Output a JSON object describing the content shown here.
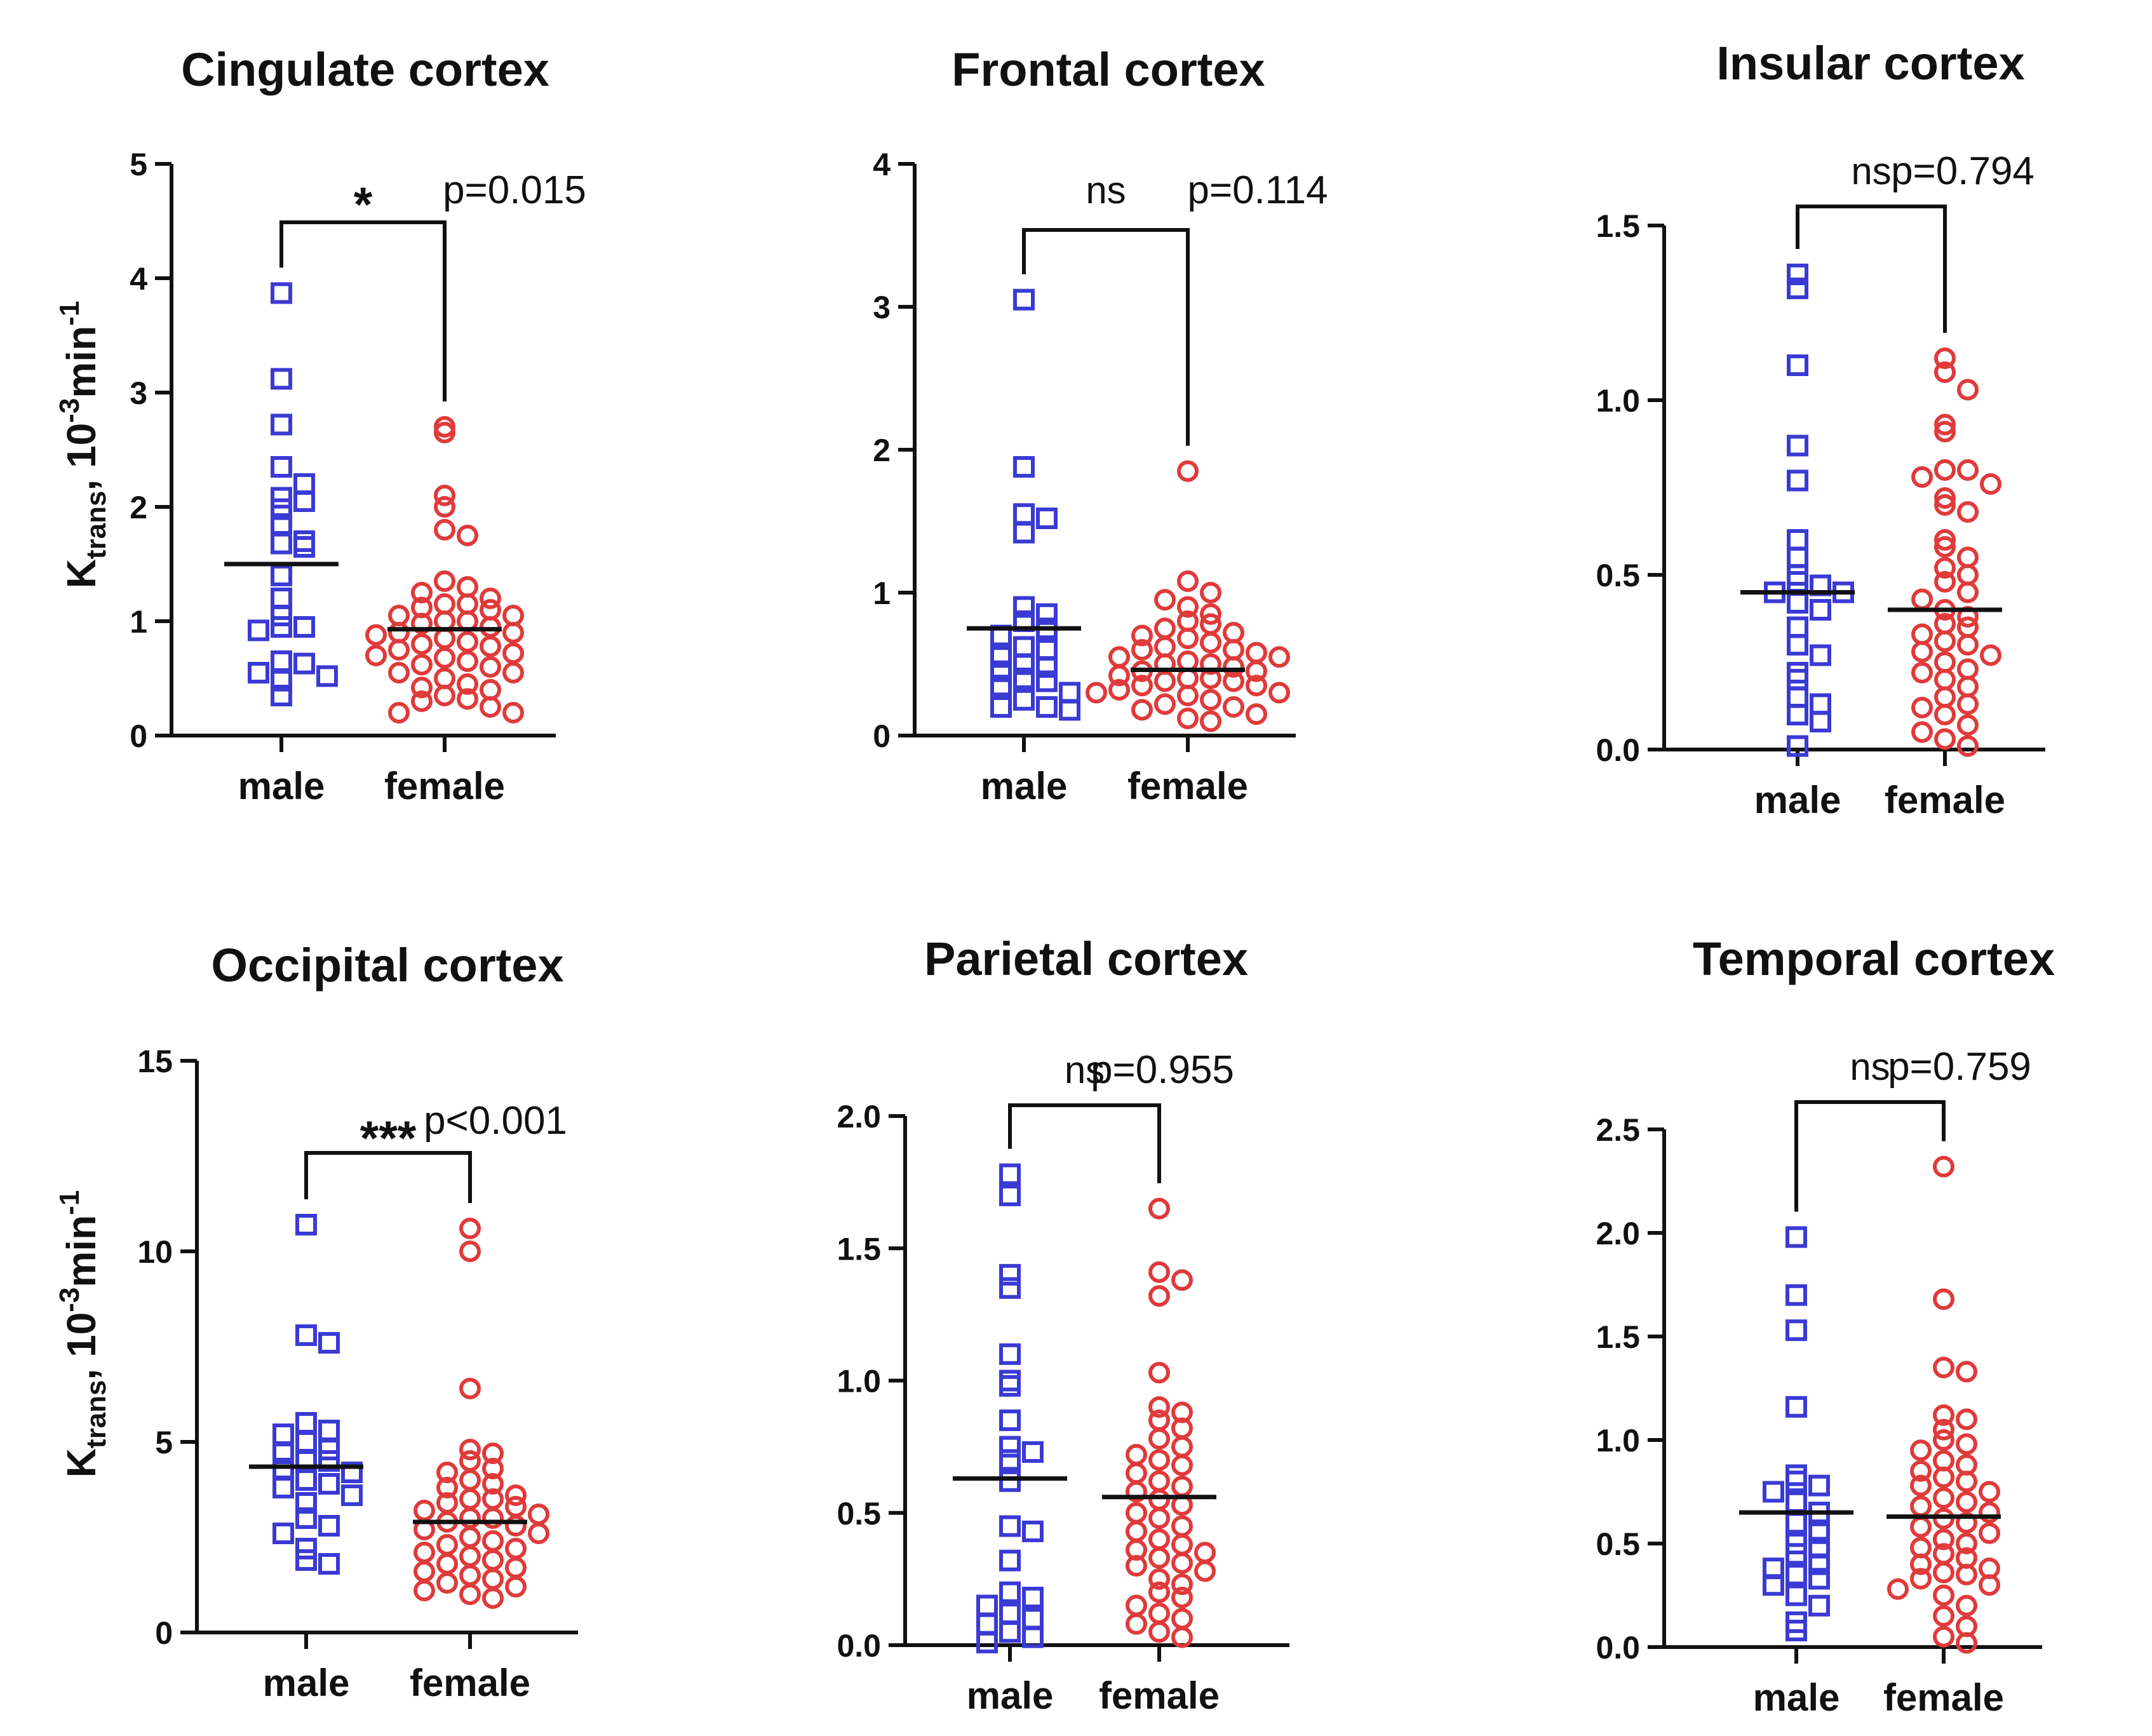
{
  "figure": {
    "ylabel": {
      "main": "K",
      "sub": "trans",
      "unit_pre": ", 10",
      "sup1": "-3",
      "unit_mid": "min",
      "sup2": "-1"
    },
    "colors": {
      "male": "#3a3ad4",
      "female": "#e03a3a",
      "axis": "#111111"
    }
  },
  "chart_data": [
    {
      "type": "scatter",
      "title": "Cingulate cortex",
      "categories": [
        "male",
        "female"
      ],
      "ylim": [
        0,
        5
      ],
      "yticks": [
        0,
        1,
        2,
        3,
        4,
        5
      ],
      "ytick_labels": [
        "0",
        "1",
        "2",
        "3",
        "4",
        "5"
      ],
      "significance": "*",
      "p_value": "p=0.015",
      "series": [
        {
          "name": "male",
          "marker": "square",
          "mean": 1.5,
          "values": [
            3.87,
            3.12,
            2.72,
            2.35,
            2.2,
            2.08,
            2.05,
            1.98,
            1.85,
            1.7,
            1.68,
            1.65,
            1.4,
            1.2,
            1.05,
            0.95,
            0.95,
            0.92,
            0.65,
            0.63,
            0.55,
            0.52,
            0.48,
            0.35
          ]
        },
        {
          "name": "female",
          "marker": "circle",
          "mean": 0.93,
          "values": [
            2.7,
            2.65,
            2.1,
            2.0,
            1.8,
            1.75,
            1.35,
            1.3,
            1.25,
            1.2,
            1.15,
            1.15,
            1.12,
            1.1,
            1.05,
            1.05,
            1.0,
            1.0,
            0.98,
            0.95,
            0.9,
            0.9,
            0.88,
            0.85,
            0.82,
            0.8,
            0.78,
            0.75,
            0.72,
            0.7,
            0.68,
            0.65,
            0.62,
            0.6,
            0.55,
            0.55,
            0.5,
            0.45,
            0.42,
            0.4,
            0.35,
            0.32,
            0.3,
            0.25,
            0.2,
            0.2
          ]
        }
      ]
    },
    {
      "type": "scatter",
      "title": "Frontal cortex",
      "categories": [
        "male",
        "female"
      ],
      "ylim": [
        0,
        4
      ],
      "yticks": [
        0,
        1,
        2,
        3,
        4
      ],
      "ytick_labels": [
        "0",
        "1",
        "2",
        "3",
        "4"
      ],
      "significance": "ns",
      "p_value": "p=0.114",
      "series": [
        {
          "name": "male",
          "marker": "square",
          "mean": 0.75,
          "values": [
            3.05,
            1.88,
            1.55,
            1.52,
            1.42,
            0.9,
            0.85,
            0.8,
            0.75,
            0.7,
            0.62,
            0.6,
            0.55,
            0.5,
            0.48,
            0.45,
            0.4,
            0.38,
            0.35,
            0.3,
            0.25,
            0.2,
            0.2,
            0.18
          ]
        },
        {
          "name": "female",
          "marker": "circle",
          "mean": 0.46,
          "values": [
            1.85,
            1.08,
            1.0,
            0.95,
            0.9,
            0.85,
            0.8,
            0.78,
            0.75,
            0.72,
            0.7,
            0.68,
            0.65,
            0.62,
            0.6,
            0.6,
            0.58,
            0.55,
            0.55,
            0.52,
            0.5,
            0.5,
            0.48,
            0.45,
            0.45,
            0.42,
            0.4,
            0.4,
            0.38,
            0.38,
            0.35,
            0.35,
            0.32,
            0.3,
            0.3,
            0.28,
            0.25,
            0.22,
            0.2,
            0.18,
            0.15,
            0.12,
            0.1
          ]
        }
      ]
    },
    {
      "type": "scatter",
      "title": "Insular cortex",
      "categories": [
        "male",
        "female"
      ],
      "ylim": [
        0,
        1.5
      ],
      "yticks": [
        0,
        0.5,
        1.0,
        1.5
      ],
      "ytick_labels": [
        "0.0",
        "0.5",
        "1.0",
        "1.5"
      ],
      "significance": "ns",
      "p_value": "p=0.794",
      "series": [
        {
          "name": "male",
          "marker": "square",
          "mean": 0.45,
          "values": [
            1.36,
            1.32,
            1.1,
            0.87,
            0.77,
            0.6,
            0.55,
            0.5,
            0.48,
            0.47,
            0.45,
            0.45,
            0.42,
            0.4,
            0.35,
            0.3,
            0.27,
            0.22,
            0.2,
            0.15,
            0.13,
            0.1,
            0.08,
            0.01
          ]
        },
        {
          "name": "female",
          "marker": "circle",
          "mean": 0.4,
          "values": [
            1.12,
            1.08,
            1.03,
            0.93,
            0.91,
            0.8,
            0.8,
            0.78,
            0.76,
            0.72,
            0.7,
            0.68,
            0.6,
            0.58,
            0.55,
            0.52,
            0.5,
            0.48,
            0.45,
            0.43,
            0.4,
            0.38,
            0.36,
            0.35,
            0.33,
            0.31,
            0.3,
            0.28,
            0.27,
            0.25,
            0.23,
            0.22,
            0.2,
            0.18,
            0.15,
            0.13,
            0.12,
            0.1,
            0.07,
            0.05,
            0.03,
            0.01
          ]
        }
      ]
    },
    {
      "type": "scatter",
      "title": "Occipital cortex",
      "categories": [
        "male",
        "female"
      ],
      "ylim": [
        0,
        15
      ],
      "yticks": [
        0,
        5,
        10,
        15
      ],
      "ytick_labels": [
        "0",
        "5",
        "10",
        "15"
      ],
      "significance": "***",
      "p_value": "p<0.001",
      "series": [
        {
          "name": "male",
          "marker": "square",
          "mean": 4.35,
          "values": [
            10.7,
            7.8,
            7.6,
            5.5,
            5.3,
            5.2,
            5.0,
            4.8,
            4.7,
            4.5,
            4.5,
            4.3,
            4.2,
            4.0,
            3.9,
            3.8,
            3.6,
            3.4,
            3.0,
            2.8,
            2.6,
            2.2,
            1.9,
            1.8
          ]
        },
        {
          "name": "female",
          "marker": "circle",
          "mean": 2.9,
          "values": [
            10.6,
            10.0,
            6.4,
            4.8,
            4.7,
            4.5,
            4.3,
            4.2,
            4.0,
            3.9,
            3.8,
            3.6,
            3.5,
            3.5,
            3.4,
            3.3,
            3.2,
            3.1,
            3.0,
            3.0,
            2.9,
            2.8,
            2.7,
            2.6,
            2.5,
            2.4,
            2.3,
            2.2,
            2.1,
            2.0,
            1.9,
            1.8,
            1.7,
            1.6,
            1.5,
            1.4,
            1.3,
            1.2,
            1.1,
            1.0,
            0.9
          ]
        }
      ]
    },
    {
      "type": "scatter",
      "title": "Parietal cortex",
      "categories": [
        "male",
        "female"
      ],
      "ylim": [
        0,
        2.0
      ],
      "yticks": [
        0,
        0.5,
        1.0,
        1.5,
        2.0
      ],
      "ytick_labels": [
        "0.0",
        "0.5",
        "1.0",
        "1.5",
        "2.0"
      ],
      "significance": "ns",
      "p_value": "p=0.955",
      "series": [
        {
          "name": "male",
          "marker": "square",
          "mean": 0.63,
          "values": [
            1.78,
            1.7,
            1.4,
            1.35,
            1.1,
            1.0,
            0.98,
            0.85,
            0.75,
            0.73,
            0.7,
            0.62,
            0.45,
            0.43,
            0.32,
            0.2,
            0.18,
            0.15,
            0.12,
            0.1,
            0.08,
            0.05,
            0.03,
            0.01
          ]
        },
        {
          "name": "female",
          "marker": "circle",
          "mean": 0.56,
          "values": [
            1.65,
            1.41,
            1.38,
            1.32,
            1.03,
            0.9,
            0.88,
            0.85,
            0.82,
            0.78,
            0.75,
            0.72,
            0.7,
            0.68,
            0.65,
            0.62,
            0.6,
            0.58,
            0.55,
            0.53,
            0.5,
            0.48,
            0.45,
            0.43,
            0.4,
            0.38,
            0.36,
            0.35,
            0.33,
            0.31,
            0.3,
            0.28,
            0.25,
            0.23,
            0.2,
            0.18,
            0.15,
            0.12,
            0.1,
            0.08,
            0.05,
            0.03
          ]
        }
      ]
    },
    {
      "type": "scatter",
      "title": "Temporal cortex",
      "categories": [
        "male",
        "female"
      ],
      "ylim": [
        0,
        2.5
      ],
      "yticks": [
        0,
        0.5,
        1.0,
        1.5,
        2.0,
        2.5
      ],
      "ytick_labels": [
        "0.0",
        "0.5",
        "1.0",
        "1.5",
        "2.0",
        "2.5"
      ],
      "significance": "ns",
      "p_value": "p=0.759",
      "series": [
        {
          "name": "male",
          "marker": "square",
          "mean": 0.65,
          "values": [
            1.98,
            1.7,
            1.53,
            1.16,
            0.83,
            0.8,
            0.78,
            0.75,
            0.7,
            0.65,
            0.6,
            0.55,
            0.5,
            0.48,
            0.45,
            0.4,
            0.38,
            0.35,
            0.33,
            0.3,
            0.25,
            0.2,
            0.12,
            0.08
          ]
        },
        {
          "name": "female",
          "marker": "circle",
          "mean": 0.63,
          "values": [
            2.32,
            1.68,
            1.35,
            1.33,
            1.12,
            1.1,
            1.05,
            1.0,
            0.98,
            0.95,
            0.9,
            0.88,
            0.85,
            0.82,
            0.8,
            0.78,
            0.75,
            0.72,
            0.7,
            0.68,
            0.65,
            0.62,
            0.6,
            0.58,
            0.55,
            0.52,
            0.5,
            0.48,
            0.45,
            0.43,
            0.4,
            0.38,
            0.36,
            0.35,
            0.33,
            0.3,
            0.28,
            0.25,
            0.2,
            0.15,
            0.1,
            0.05,
            0.02
          ]
        }
      ]
    }
  ]
}
